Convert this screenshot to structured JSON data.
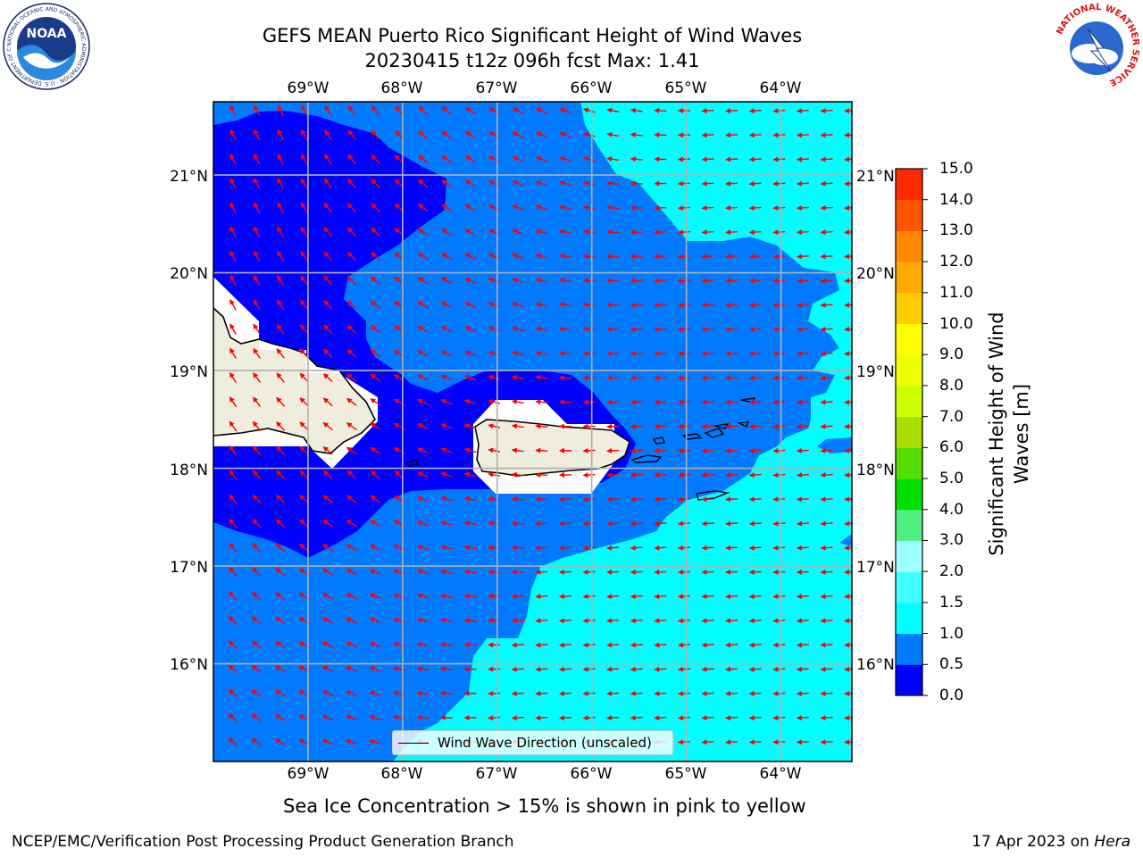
{
  "title": {
    "line1": "GEFS MEAN Puerto Rico Significant Height of Wind Waves",
    "line2": "20230415 t12z 096h fcst   Max: 1.41"
  },
  "map": {
    "lon_labels": [
      "69°W",
      "68°W",
      "67°W",
      "66°W",
      "65°W",
      "64°W"
    ],
    "lat_labels": [
      "21°N",
      "20°N",
      "19°N",
      "18°N",
      "17°N",
      "16°N"
    ],
    "extent": {
      "lon_min": -70.0,
      "lon_max": -63.25,
      "lat_min": 15.0,
      "lat_max": 21.75
    },
    "grid": true,
    "legend_label": "Wind Wave Direction (unscaled)",
    "arrow_color": "#ff0000",
    "land_color": "#efedde",
    "zone_colors": [
      "#0000ff",
      "#007bff",
      "#00ffff"
    ]
  },
  "colorbar": {
    "label": "Significant Height of Wind Waves [m]",
    "ticks": [
      "0.0",
      "0.5",
      "1.0",
      "1.5",
      "2.0",
      "3.0",
      "4.0",
      "5.0",
      "6.0",
      "7.0",
      "8.0",
      "9.0",
      "10.0",
      "11.0",
      "12.0",
      "13.0",
      "14.0",
      "15.0"
    ],
    "colors": [
      "#0000ff",
      "#007bff",
      "#00ffff",
      "#40ffff",
      "#a0ffff",
      "#50f080",
      "#00e000",
      "#55dd00",
      "#aadd00",
      "#ccff00",
      "#eeff00",
      "#ffff00",
      "#ffcc00",
      "#ffaa00",
      "#ff8800",
      "#ff5500",
      "#ff2a00"
    ]
  },
  "caption": "Sea Ice Concentration > 15% is shown in pink to yellow",
  "footer": {
    "left": "NCEP/EMC/Verification Post Processing Product Generation Branch",
    "right_prefix": "17 Apr 2023 on ",
    "right_host": "Hera"
  },
  "logos": {
    "noaa_text": "NOAA",
    "noaa_ring": "NATIONAL OCEANIC AND ATMOSPHERIC ADMINISTRATION · U.S. DEPARTMENT OF COMMERCE",
    "nws_ring": "NATIONAL WEATHER SERVICE"
  }
}
